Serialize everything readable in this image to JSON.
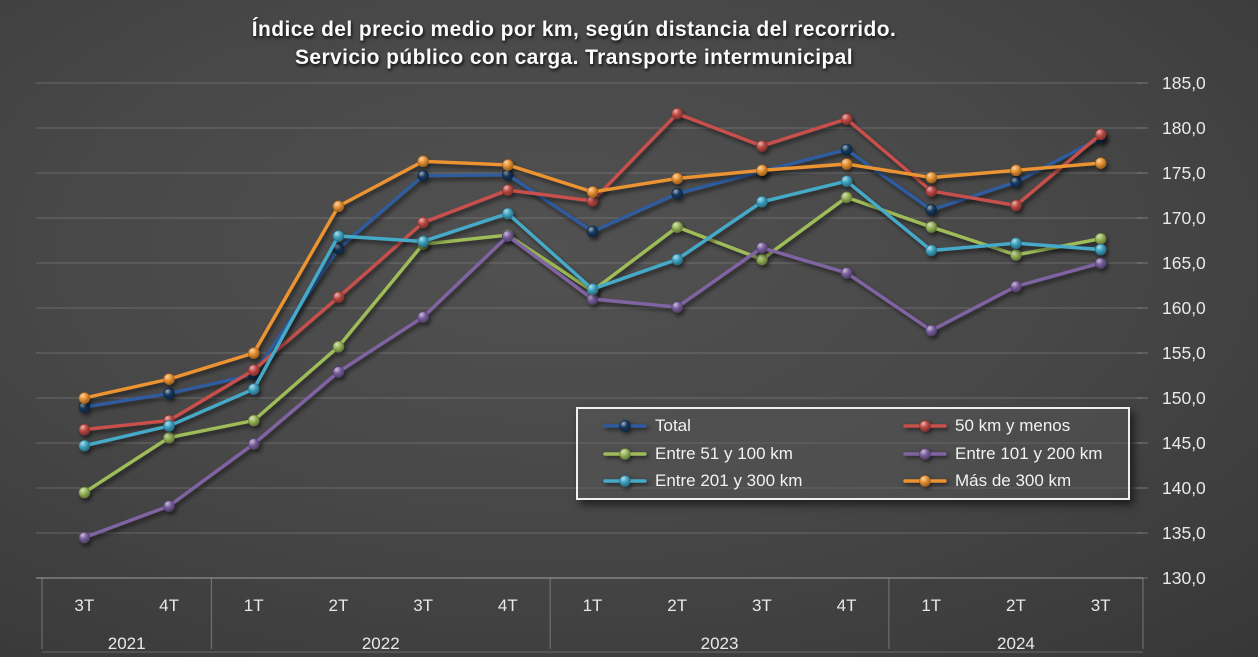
{
  "chart_data": {
    "type": "line",
    "title_line1": "Índice del precio medio por km, según distancia del recorrido.",
    "title_line2": "Servicio público con carga. Transporte intermunicipal",
    "categories": [
      "3T",
      "4T",
      "1T",
      "2T",
      "3T",
      "4T",
      "1T",
      "2T",
      "3T",
      "4T",
      "1T",
      "2T",
      "3T"
    ],
    "year_groups": [
      {
        "label": "2021",
        "span": 2
      },
      {
        "label": "2022",
        "span": 4
      },
      {
        "label": "2023",
        "span": 4
      },
      {
        "label": "2024",
        "span": 3
      }
    ],
    "y_axis": {
      "min": 130,
      "max": 185,
      "step": 5,
      "tick_labels": [
        "185,0",
        "180,0",
        "175,0",
        "170,0",
        "165,0",
        "160,0",
        "155,0",
        "150,0",
        "145,0",
        "140,0",
        "135,0",
        "130,0"
      ]
    },
    "grid": true,
    "legend_position": "inside-center-right",
    "series": [
      {
        "name": "Total",
        "color": "#2E5B9F",
        "marker_color": "#16395F",
        "values": [
          149.0,
          150.5,
          152.6,
          166.6,
          174.7,
          174.8,
          168.5,
          172.7,
          175.2,
          177.6,
          170.9,
          174.0,
          178.9
        ]
      },
      {
        "name": "50 km y menos",
        "color": "#C8504B",
        "marker_color": "#BF4A45",
        "values": [
          146.5,
          147.5,
          153.1,
          161.2,
          169.5,
          173.1,
          171.9,
          181.6,
          178.0,
          181.0,
          173.0,
          171.4,
          179.3
        ]
      },
      {
        "name": "Entre 51 y 100 km",
        "color": "#9EBC59",
        "marker_color": "#97B557",
        "values": [
          139.5,
          145.6,
          147.5,
          155.7,
          167.1,
          168.1,
          161.9,
          169.0,
          165.4,
          172.3,
          169.0,
          165.9,
          167.7
        ]
      },
      {
        "name": "Entre 101 y 200 km",
        "color": "#8064A2",
        "marker_color": "#7A5F9E",
        "values": [
          134.5,
          138.0,
          144.9,
          152.9,
          159.0,
          168.0,
          161.0,
          160.1,
          166.7,
          163.9,
          157.5,
          162.4,
          165.0
        ]
      },
      {
        "name": "Entre 201 y 300 km",
        "color": "#45AAC7",
        "marker_color": "#3EA3C2",
        "values": [
          144.7,
          146.9,
          151.0,
          168.0,
          167.4,
          170.5,
          162.1,
          165.4,
          171.8,
          174.1,
          166.4,
          167.2,
          166.5
        ]
      },
      {
        "name": "Más de 300 km",
        "color": "#EC9333",
        "marker_color": "#E89130",
        "values": [
          150.0,
          152.1,
          155.0,
          171.3,
          176.3,
          175.9,
          172.9,
          174.4,
          175.3,
          176.0,
          174.5,
          175.3,
          176.1
        ]
      }
    ]
  }
}
